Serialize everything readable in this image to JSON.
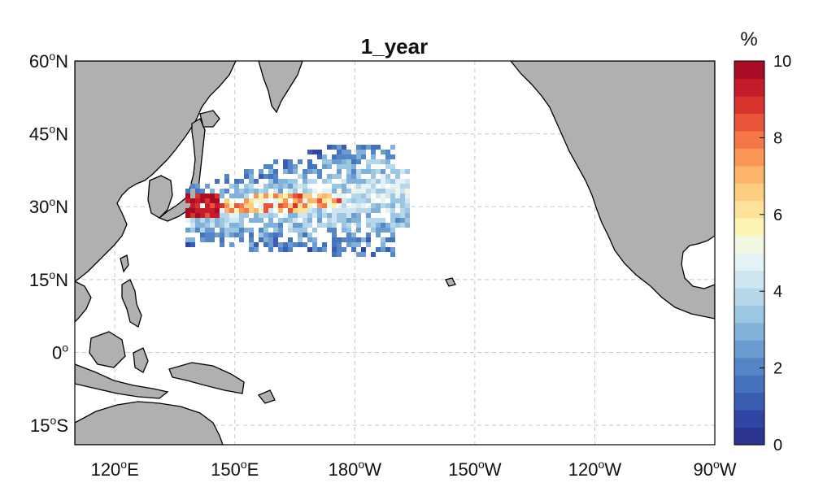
{
  "title": "1_year",
  "colorbar": {
    "unit": "%",
    "min": 0,
    "max": 10,
    "ticks": [
      "0",
      "2",
      "4",
      "6",
      "8",
      "10"
    ],
    "colors": [
      "#2b3591",
      "#2f45a3",
      "#3a5cb1",
      "#4572bd",
      "#5485c4",
      "#6a9ccf",
      "#82b2d9",
      "#9cc6e2",
      "#b6d7ea",
      "#cde6f1",
      "#e5f2f5",
      "#f1f7e0",
      "#fdf3b4",
      "#fde39a",
      "#fdce80",
      "#fcb46a",
      "#f99656",
      "#f47748",
      "#e8553a",
      "#d8352f",
      "#c41c2a",
      "#a90d26"
    ]
  },
  "axes": {
    "lat_labels": [
      {
        "deg": "60",
        "hemi": "N",
        "value": 60
      },
      {
        "deg": "45",
        "hemi": "N",
        "value": 45
      },
      {
        "deg": "30",
        "hemi": "N",
        "value": 30
      },
      {
        "deg": "15",
        "hemi": "N",
        "value": 15
      },
      {
        "deg": "0",
        "hemi": "",
        "value": 0
      },
      {
        "deg": "15",
        "hemi": "S",
        "value": -15
      }
    ],
    "lon_labels": [
      {
        "deg": "120",
        "hemi": "E",
        "value": 120
      },
      {
        "deg": "150",
        "hemi": "E",
        "value": 150
      },
      {
        "deg": "180",
        "hemi": "W",
        "value": 180
      },
      {
        "deg": "150",
        "hemi": "W",
        "value": 210
      },
      {
        "deg": "120",
        "hemi": "W",
        "value": 240
      },
      {
        "deg": "90",
        "hemi": "W",
        "value": 270
      }
    ],
    "lon_range": [
      110,
      270
    ],
    "lat_range": [
      -19,
      60
    ],
    "grid": true
  },
  "colors": {
    "land": "#b0b0b0",
    "coast": "#000000",
    "ocean": "#ffffff",
    "grid": "#c8c8c8"
  }
}
